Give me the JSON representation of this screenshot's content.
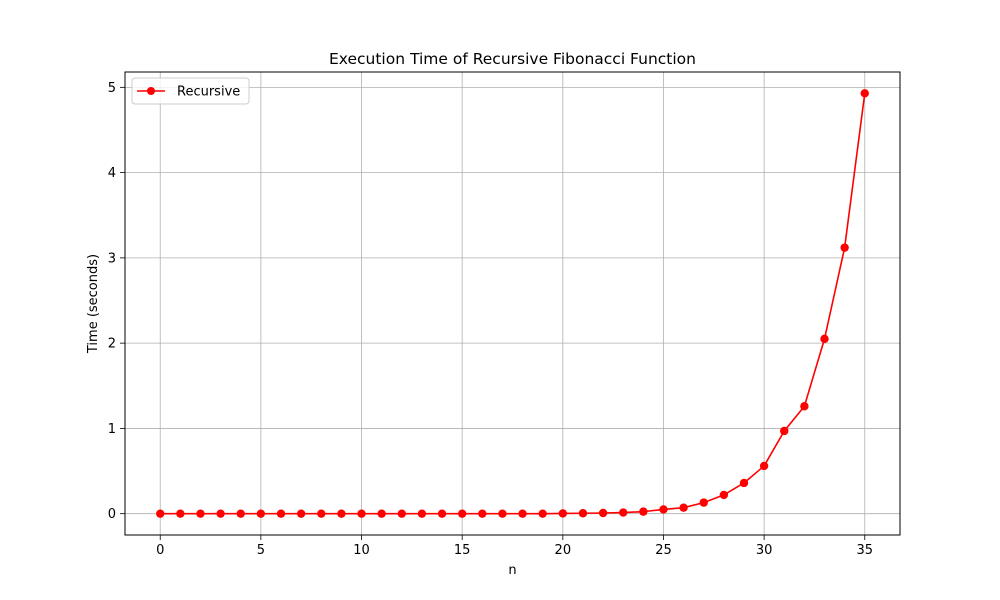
{
  "chart_data": {
    "type": "line",
    "title": "Execution Time of Recursive Fibonacci Function",
    "xlabel": "n",
    "ylabel": "Time (seconds)",
    "xlim": [
      -1.75,
      36.75
    ],
    "ylim": [
      -0.25,
      5.18
    ],
    "xticks": [
      0,
      5,
      10,
      15,
      20,
      25,
      30,
      35
    ],
    "yticks": [
      0,
      1,
      2,
      3,
      4,
      5
    ],
    "grid": true,
    "legend_position": "top-left",
    "series": [
      {
        "name": "Recursive",
        "color": "#ff0000",
        "marker": "circle",
        "x": [
          0,
          1,
          2,
          3,
          4,
          5,
          6,
          7,
          8,
          9,
          10,
          11,
          12,
          13,
          14,
          15,
          16,
          17,
          18,
          19,
          20,
          21,
          22,
          23,
          24,
          25,
          26,
          27,
          28,
          29,
          30,
          31,
          32,
          33,
          34,
          35
        ],
        "values": [
          0,
          0,
          0,
          0,
          0,
          0,
          0,
          0,
          0,
          0,
          0,
          0,
          0,
          0,
          0,
          0,
          0,
          0,
          0,
          0,
          0.003,
          0.005,
          0.008,
          0.013,
          0.024,
          0.05,
          0.07,
          0.13,
          0.22,
          0.36,
          0.56,
          0.97,
          1.26,
          2.05,
          3.12,
          4.93
        ]
      }
    ]
  }
}
